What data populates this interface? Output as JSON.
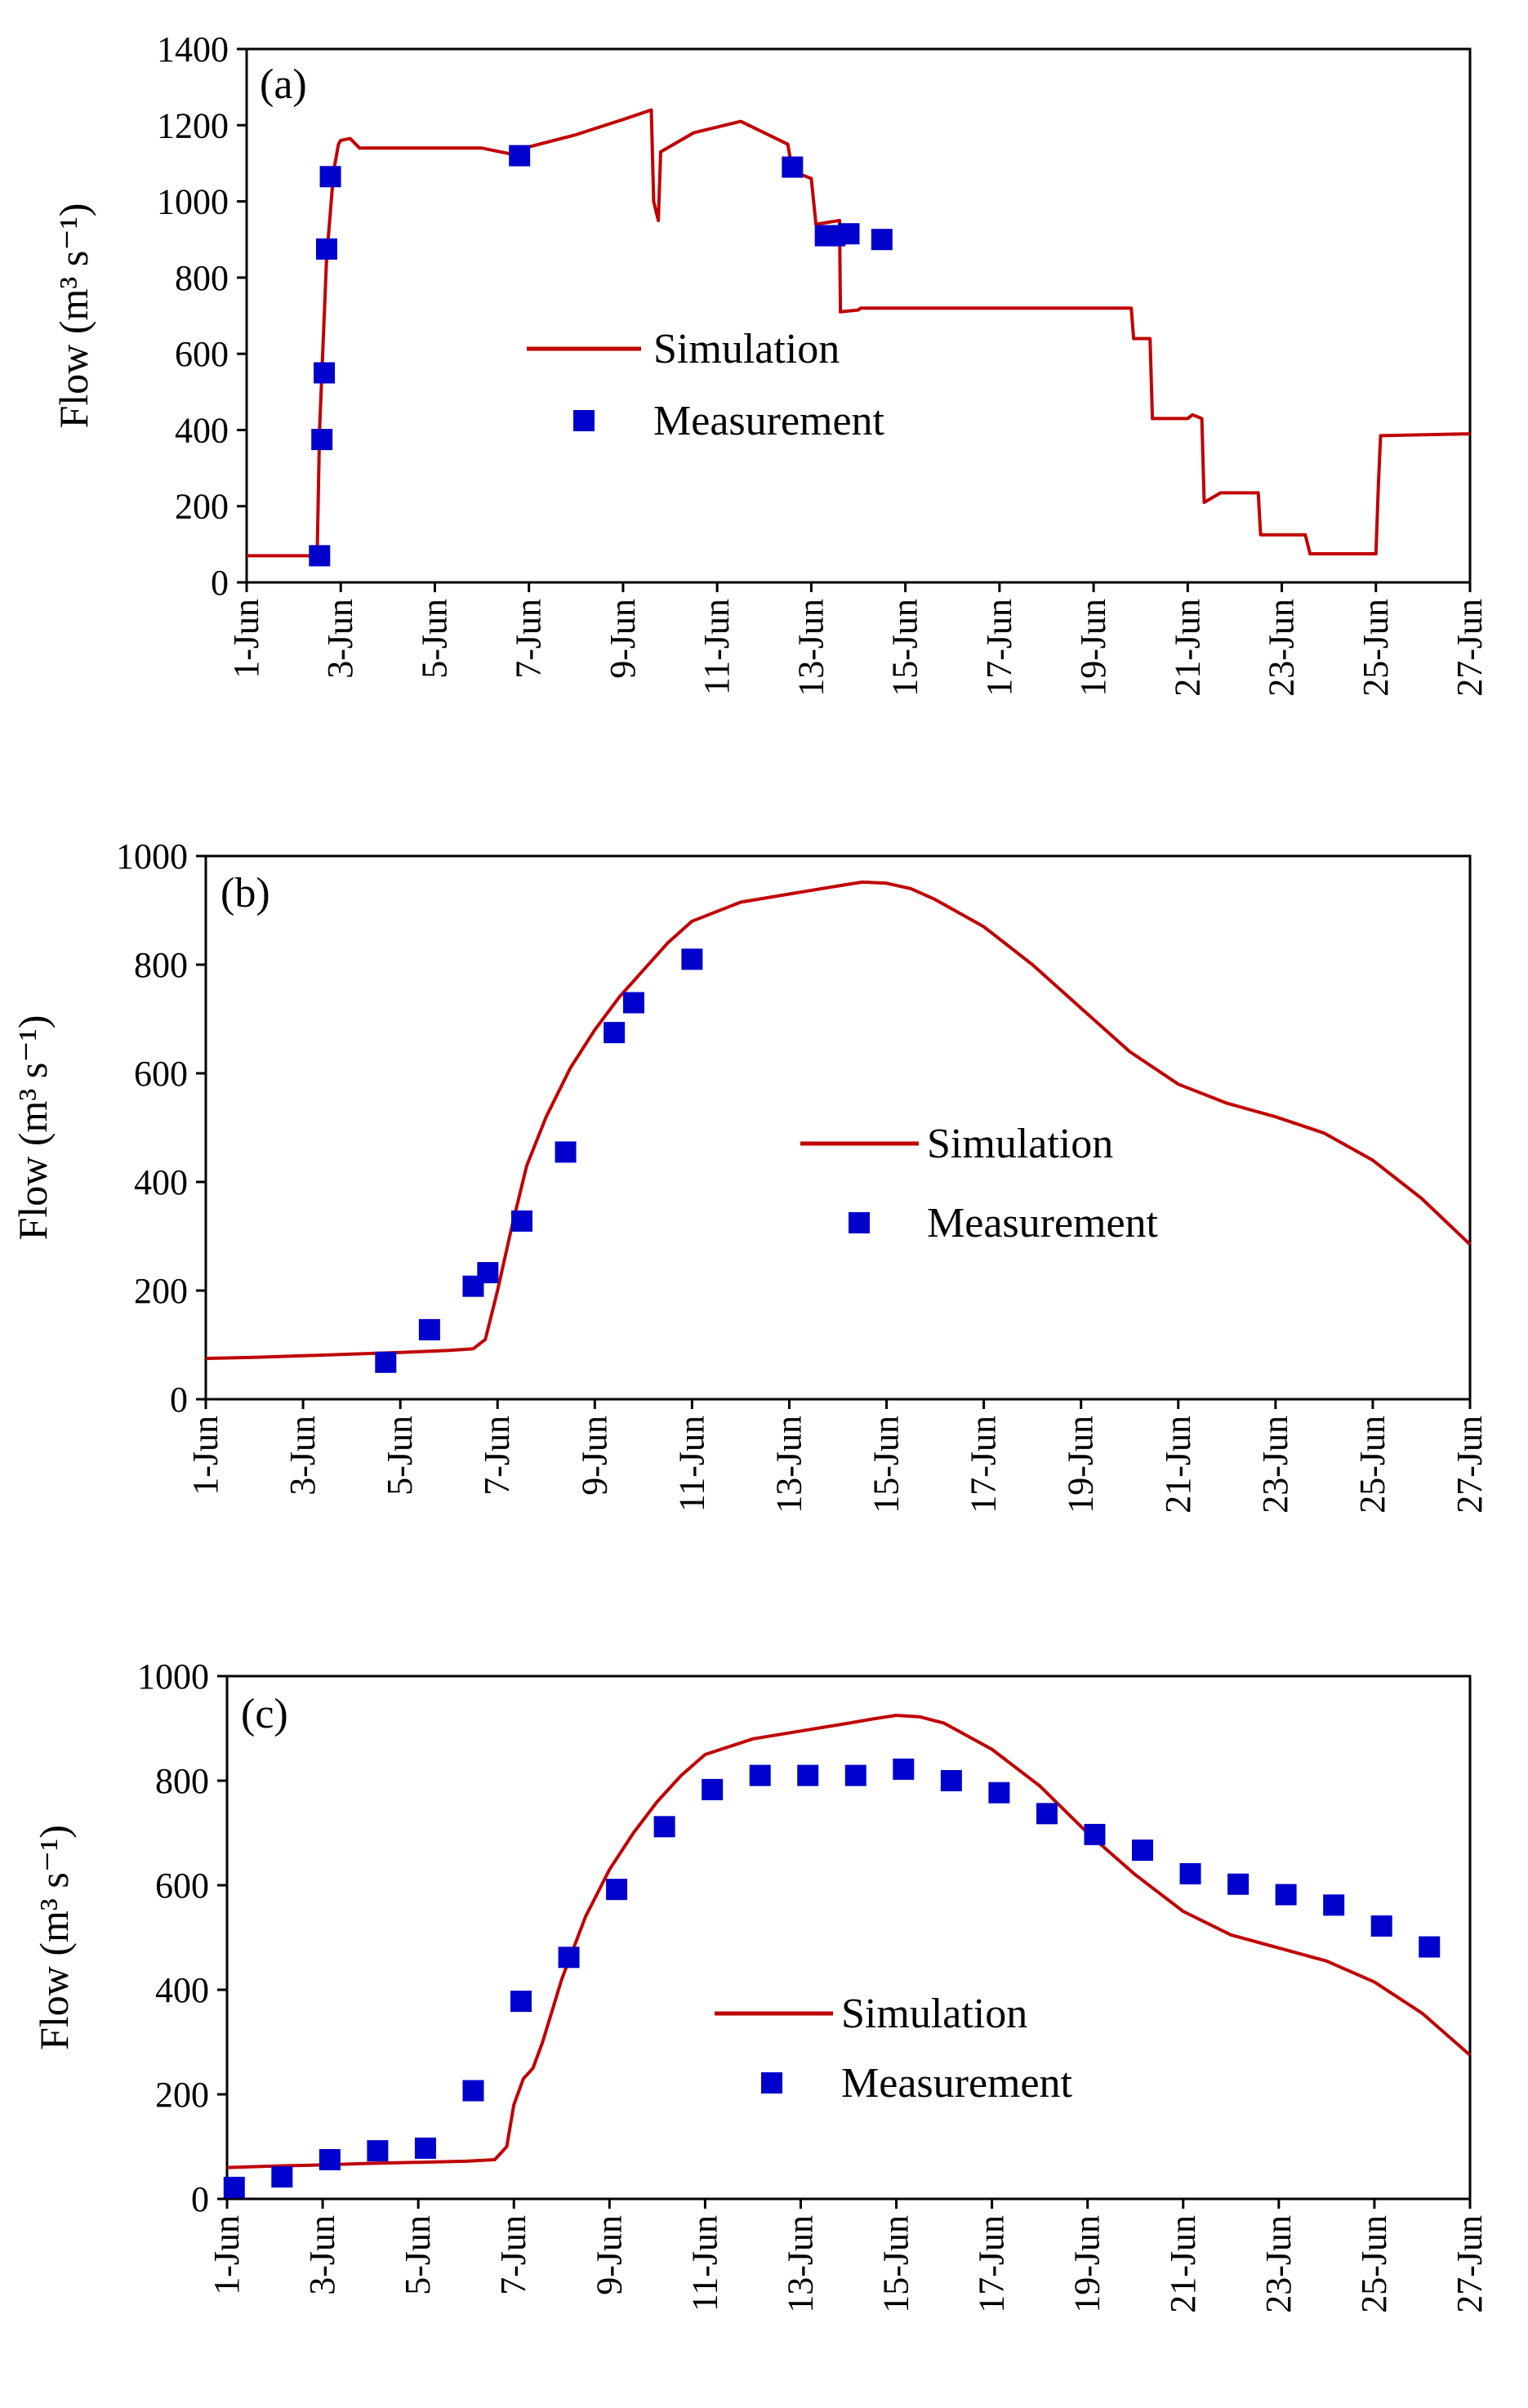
{
  "figure": {
    "x_tick_labels": [
      "1-Jun",
      "3-Jun",
      "5-Jun",
      "7-Jun",
      "9-Jun",
      "11-Jun",
      "13-Jun",
      "15-Jun",
      "17-Jun",
      "19-Jun",
      "21-Jun",
      "23-Jun",
      "25-Jun",
      "27-Jun"
    ],
    "colors": {
      "simulation": "#c00000",
      "measurement": "#0000cc",
      "axis": "#000000"
    }
  },
  "chart_data": [
    {
      "type": "line",
      "panel_label": "(a)",
      "ylabel": "Flow (m³ s⁻¹)",
      "xlabel": "",
      "xlim": [
        0,
        26
      ],
      "ylim": [
        0,
        1400
      ],
      "y_ticks": [
        0,
        200,
        400,
        600,
        800,
        1000,
        1200,
        1400
      ],
      "legend": {
        "placement": "center",
        "entries": [
          "Simulation",
          "Measurement"
        ]
      },
      "series": [
        {
          "name": "Simulation",
          "kind": "line",
          "x": [
            0,
            1.4,
            1.5,
            1.55,
            1.7,
            1.85,
            1.95,
            2.0,
            2.2,
            2.4,
            3.0,
            4.0,
            5.0,
            5.6,
            5.9,
            7.0,
            8.0,
            8.6,
            8.65,
            8.75,
            8.8,
            9.5,
            10.5,
            11.0,
            11.5,
            11.6,
            12.0,
            12.1,
            12.6,
            12.62,
            13.0,
            13.05,
            13.5,
            13.55,
            13.7,
            14.0,
            15.0,
            16.0,
            17.0,
            18.0,
            18.8,
            18.85,
            19.2,
            19.25,
            20.0,
            20.1,
            20.3,
            20.35,
            20.7,
            20.75,
            21.5,
            21.55,
            22.5,
            22.6,
            23.0,
            23.05,
            24.0,
            24.05,
            24.1,
            26.0
          ],
          "y": [
            70,
            70,
            75,
            400,
            850,
            1080,
            1150,
            1160,
            1165,
            1140,
            1140,
            1140,
            1140,
            1125,
            1140,
            1175,
            1215,
            1240,
            1000,
            950,
            1130,
            1180,
            1210,
            1180,
            1150,
            1080,
            1060,
            940,
            950,
            710,
            715,
            720,
            720,
            720,
            720,
            720,
            720,
            720,
            720,
            720,
            720,
            640,
            640,
            430,
            430,
            440,
            430,
            210,
            235,
            235,
            235,
            125,
            125,
            75,
            75,
            75,
            75,
            250,
            385,
            390
          ]
        },
        {
          "name": "Measurement",
          "kind": "markers",
          "x": [
            1.55,
            1.6,
            1.65,
            1.7,
            1.78,
            5.8,
            11.6,
            12.3,
            12.5,
            12.8,
            13.5
          ],
          "y": [
            70,
            375,
            550,
            875,
            1065,
            1120,
            1090,
            910,
            910,
            915,
            900
          ]
        }
      ]
    },
    {
      "type": "line",
      "panel_label": "(b)",
      "ylabel": "Flow (m³ s⁻¹)",
      "xlabel": "",
      "xlim": [
        0,
        26
      ],
      "ylim": [
        0,
        1000
      ],
      "y_ticks": [
        0,
        200,
        400,
        600,
        800,
        1000
      ],
      "legend": {
        "placement": "center-right",
        "entries": [
          "Simulation",
          "Measurement"
        ]
      },
      "series": [
        {
          "name": "Simulation",
          "kind": "line",
          "x": [
            0,
            1.0,
            2.0,
            3.0,
            4.0,
            5.0,
            5.5,
            5.75,
            6.0,
            6.3,
            6.6,
            7.0,
            7.5,
            8.0,
            8.5,
            9.0,
            9.5,
            10.0,
            11.0,
            12.0,
            13.0,
            13.5,
            14.0,
            14.5,
            15.0,
            16.0,
            17.0,
            18.0,
            19.0,
            20.0,
            21.0,
            22.0,
            23.0,
            24.0,
            25.0,
            26.0
          ],
          "y": [
            75,
            77,
            80,
            83,
            86,
            90,
            93,
            110,
            200,
            320,
            430,
            520,
            610,
            680,
            740,
            790,
            840,
            880,
            915,
            930,
            945,
            952,
            950,
            940,
            920,
            870,
            800,
            720,
            640,
            580,
            545,
            520,
            490,
            440,
            370,
            285
          ]
        },
        {
          "name": "Measurement",
          "kind": "markers",
          "x": [
            3.7,
            4.6,
            5.5,
            5.8,
            6.5,
            7.4,
            8.4,
            8.8,
            10.0
          ],
          "y": [
            68,
            128,
            208,
            233,
            328,
            455,
            675,
            730,
            810
          ]
        }
      ]
    },
    {
      "type": "line",
      "panel_label": "(c)",
      "ylabel": "Flow (m³ s⁻¹)",
      "xlabel": "",
      "xlim": [
        0,
        26
      ],
      "ylim": [
        0,
        1000
      ],
      "y_ticks": [
        0,
        200,
        400,
        600,
        800,
        1000
      ],
      "legend": {
        "placement": "center-right",
        "entries": [
          "Simulation",
          "Measurement"
        ]
      },
      "series": [
        {
          "name": "Simulation",
          "kind": "line",
          "x": [
            0,
            1.0,
            2.0,
            3.0,
            4.0,
            5.0,
            5.6,
            5.85,
            6.0,
            6.2,
            6.4,
            6.6,
            7.0,
            7.5,
            8.0,
            8.5,
            9.0,
            9.5,
            10.0,
            11.0,
            12.0,
            13.0,
            13.5,
            14.0,
            14.5,
            15.0,
            16.0,
            17.0,
            18.0,
            19.0,
            20.0,
            21.0,
            22.0,
            23.0,
            24.0,
            25.0,
            26.0
          ],
          "y": [
            60,
            63,
            65,
            68,
            70,
            72,
            75,
            100,
            180,
            230,
            250,
            300,
            420,
            540,
            630,
            700,
            760,
            810,
            850,
            880,
            895,
            910,
            918,
            925,
            922,
            910,
            860,
            790,
            700,
            620,
            550,
            505,
            480,
            455,
            415,
            355,
            275
          ]
        },
        {
          "name": "Measurement",
          "kind": "markers",
          "x": [
            0.15,
            1.15,
            2.15,
            3.15,
            4.15,
            5.15,
            6.15,
            7.15,
            8.15,
            9.15,
            10.15,
            11.15,
            12.15,
            13.15,
            14.15,
            15.15,
            16.15,
            17.15,
            18.15,
            19.15,
            20.15,
            21.15,
            22.15,
            23.15,
            24.15,
            25.15
          ],
          "y": [
            22,
            42,
            75,
            92,
            97,
            207,
            378,
            462,
            592,
            712,
            783,
            810,
            810,
            810,
            822,
            800,
            777,
            737,
            697,
            667,
            622,
            602,
            582,
            562,
            522,
            482
          ]
        }
      ]
    }
  ]
}
